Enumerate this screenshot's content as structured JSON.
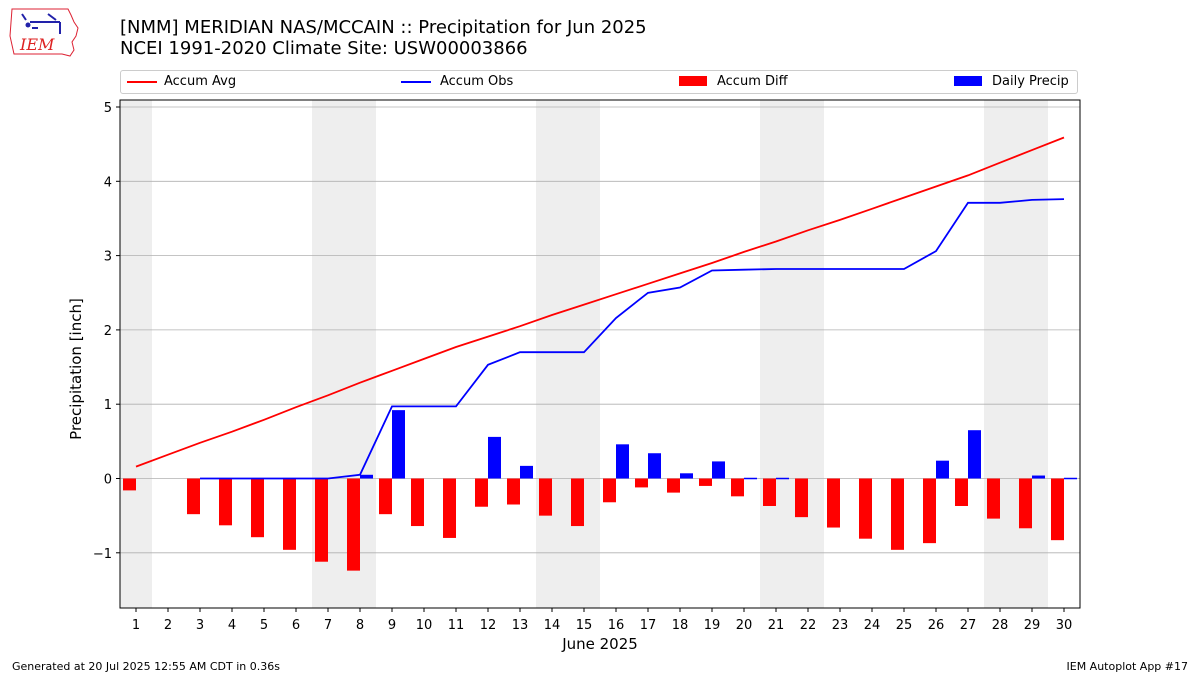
{
  "header": {
    "title_line1": "[NMM] MERIDIAN NAS/MCCAIN :: Precipitation for Jun 2025",
    "title_line2": "NCEI 1991-2020 Climate Site: USW00003866"
  },
  "logo": {
    "text": "IEM",
    "icon": "iem-iowa-logo-icon"
  },
  "footer": {
    "generated": "Generated at 20 Jul 2025 12:55 AM CDT in 0.36s",
    "app": "IEM Autoplot App #17"
  },
  "colors": {
    "avg": "#ff0000",
    "obs": "#0000ff",
    "diff": "#ff0000",
    "daily": "#0000ff",
    "weekend_band": "#eeeeee",
    "grid": "#b0b0b0"
  },
  "chart_data": {
    "type": "bar",
    "xlabel": "June 2025",
    "ylabel": "Precipitation [inch]",
    "ylim": [
      -1.75,
      5.1
    ],
    "yticks": [
      -1,
      0,
      1,
      2,
      3,
      4,
      5
    ],
    "ytick_labels": [
      "−1",
      "0",
      "1",
      "2",
      "3",
      "4",
      "5"
    ],
    "grid": "y",
    "legend_position": "top",
    "x": [
      1,
      2,
      3,
      4,
      5,
      6,
      7,
      8,
      9,
      10,
      11,
      12,
      13,
      14,
      15,
      16,
      17,
      18,
      19,
      20,
      21,
      22,
      23,
      24,
      25,
      26,
      27,
      28,
      29,
      30
    ],
    "shaded_days": [
      1,
      7,
      8,
      14,
      15,
      21,
      22,
      28,
      29
    ],
    "series": [
      {
        "name": "Accum Avg",
        "kind": "line",
        "values": [
          0.16,
          0.32,
          0.48,
          0.63,
          0.79,
          0.96,
          1.12,
          1.29,
          1.45,
          1.61,
          1.77,
          1.91,
          2.05,
          2.2,
          2.34,
          2.48,
          2.62,
          2.76,
          2.9,
          3.05,
          3.19,
          3.34,
          3.48,
          3.63,
          3.78,
          3.93,
          4.08,
          4.25,
          4.42,
          4.59
        ]
      },
      {
        "name": "Accum Obs",
        "kind": "line",
        "values": [
          null,
          null,
          0.0,
          0.0,
          0.0,
          0.0,
          0.0,
          0.05,
          0.97,
          0.97,
          0.97,
          1.53,
          1.7,
          1.7,
          1.7,
          2.16,
          2.5,
          2.57,
          2.8,
          2.81,
          2.82,
          2.82,
          2.82,
          2.82,
          2.82,
          3.06,
          3.71,
          3.71,
          3.75,
          3.76
        ]
      },
      {
        "name": "Accum Diff",
        "kind": "bar",
        "values": [
          -0.16,
          null,
          -0.48,
          -0.63,
          -0.79,
          -0.96,
          -1.12,
          -1.24,
          -0.48,
          -0.64,
          -0.8,
          -0.38,
          -0.35,
          -0.5,
          -0.64,
          -0.32,
          -0.12,
          -0.19,
          -0.1,
          -0.24,
          -0.37,
          -0.52,
          -0.66,
          -0.81,
          -0.96,
          -0.87,
          -0.37,
          -0.54,
          -0.67,
          -0.83
        ]
      },
      {
        "name": "Daily Precip",
        "kind": "bar",
        "values": [
          0,
          0,
          0,
          0,
          0,
          0,
          0,
          0.05,
          0.92,
          0,
          0,
          0.56,
          0.17,
          0,
          0,
          0.46,
          0.34,
          0.07,
          0.23,
          0.01,
          0.01,
          0,
          0,
          0,
          0,
          0.24,
          0.65,
          0,
          0.04,
          0.01
        ]
      }
    ]
  }
}
